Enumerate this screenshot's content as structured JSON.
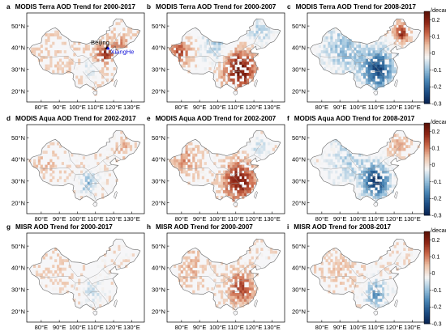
{
  "panels": [
    {
      "letter": "a",
      "title": "MODIS Terra AOD Trend for 2000-2017",
      "pattern": "a"
    },
    {
      "letter": "b",
      "title": "MODIS Terra AOD Trend for 2000-2007",
      "pattern": "b"
    },
    {
      "letter": "c",
      "title": "MODIS Terra AOD Trend for 2008-2017",
      "pattern": "c"
    },
    {
      "letter": "d",
      "title": "MODIS Aqua AOD Trend for 2002-2017",
      "pattern": "d"
    },
    {
      "letter": "e",
      "title": "MODIS Aqua AOD Trend for 2002-2007",
      "pattern": "e"
    },
    {
      "letter": "f",
      "title": "MODIS Aqua AOD Trend for 2008-2017",
      "pattern": "f"
    },
    {
      "letter": "g",
      "title": "MISR AOD Trend for 2000-2017",
      "pattern": "g"
    },
    {
      "letter": "h",
      "title": "MISR AOD Trend for 2000-2007",
      "pattern": "h"
    },
    {
      "letter": "i",
      "title": "MISR AOD Trend for 2008-2017",
      "pattern": "i"
    }
  ],
  "axes": {
    "lat_labels": [
      "50°N",
      "40°N",
      "30°N",
      "20°N"
    ],
    "lon_labels": [
      "80°E",
      "90°E",
      "100°E",
      "110°E",
      "120°E",
      "130°E"
    ]
  },
  "colorbar": {
    "unit": "/decade",
    "ticks": [
      "0.2",
      "0.1",
      "0",
      "-0.1",
      "-0.2",
      "-0.3"
    ],
    "colors": [
      "#08214f",
      "#1d4e84",
      "#4a86b5",
      "#9cc3dd",
      "#f5f5f5",
      "#edc3a9",
      "#cc6b4c",
      "#8e2616",
      "#561006"
    ],
    "range": [
      -0.3,
      0.25
    ]
  },
  "annotations": {
    "beijing": "Beijing",
    "xianghe": "XiangHe",
    "xianghe_color": "#1414d8"
  }
}
